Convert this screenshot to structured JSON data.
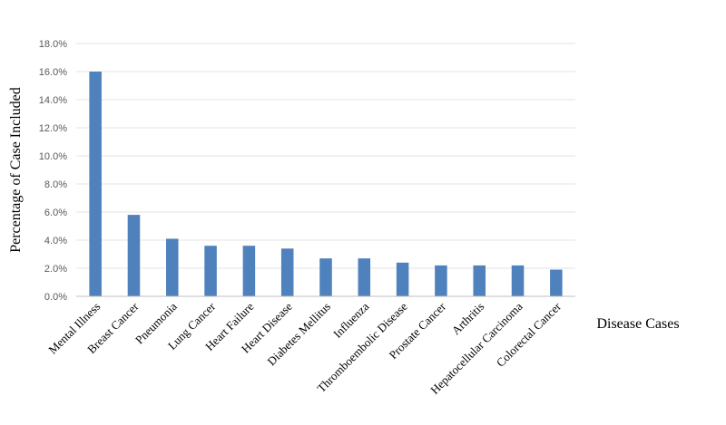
{
  "chart_data": {
    "type": "bar",
    "title": "",
    "xlabel": "Disease Cases",
    "ylabel": "Percentage of Case Included",
    "ylim": [
      0,
      18
    ],
    "ytick_step": 2,
    "yticks": [
      "0.0%",
      "2.0%",
      "4.0%",
      "6.0%",
      "8.0%",
      "10.0%",
      "12.0%",
      "14.0%",
      "16.0%",
      "18.0%"
    ],
    "grid": true,
    "legend": "none",
    "bar_color": "#4f81bd",
    "categories": [
      "Mental Illness",
      "Breast Cancer",
      "Pneumonia",
      "Lung Cancer",
      "Heart Failure",
      "Heart Disease",
      "Diabetes Mellitus",
      "Influenza",
      "Thromboembolic Disease",
      "Prostate Cancer",
      "Arthritis",
      "Hepatocellular Carcinoma",
      "Colorectal Cancer"
    ],
    "values": [
      16.0,
      5.8,
      4.1,
      3.6,
      3.6,
      3.4,
      2.7,
      2.7,
      2.4,
      2.2,
      2.2,
      2.2,
      1.9
    ]
  }
}
